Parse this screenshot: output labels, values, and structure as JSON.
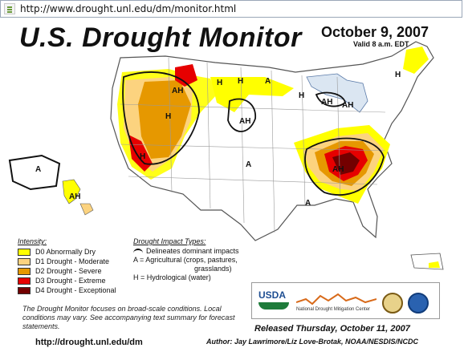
{
  "browser": {
    "url": "http://www.drought.unl.edu/dm/monitor.html"
  },
  "header": {
    "title": "U.S. Drought Monitor",
    "date": "October 9, 2007",
    "valid": "Valid 8 a.m. EDT"
  },
  "legend": {
    "intensity_header": "Intensity:",
    "items": [
      {
        "label": "D0 Abnormally Dry",
        "color": "#ffff00"
      },
      {
        "label": "D1 Drought - Moderate",
        "color": "#fcd37f"
      },
      {
        "label": "D2 Drought - Severe",
        "color": "#e69800"
      },
      {
        "label": "D3 Drought - Extreme",
        "color": "#e60000"
      },
      {
        "label": "D4 Drought - Exceptional",
        "color": "#730000"
      }
    ],
    "impact_header": "Drought Impact Types:",
    "impact_line": "Delineates dominant impacts",
    "ag_line1": "A = Agricultural (crops, pastures,",
    "ag_line2": "grasslands)",
    "hydro": "H = Hydrological (water)"
  },
  "map_labels": {
    "h": "H",
    "a": "A",
    "ah": "AH"
  },
  "note": "The Drought Monitor focuses on broad-scale conditions. Local conditions may vary. See accompanying text summary for forecast statements.",
  "footer": {
    "site": "http://drought.unl.edu/dm",
    "released": "Released Thursday, October 11, 2007",
    "authors": "Author:  Jay Lawrimore/Liz Love-Brotak, NOAA/NESDIS/NCDC"
  },
  "logos": {
    "usda": "USDA",
    "ndmc": "National Drought Mitigation Center"
  }
}
